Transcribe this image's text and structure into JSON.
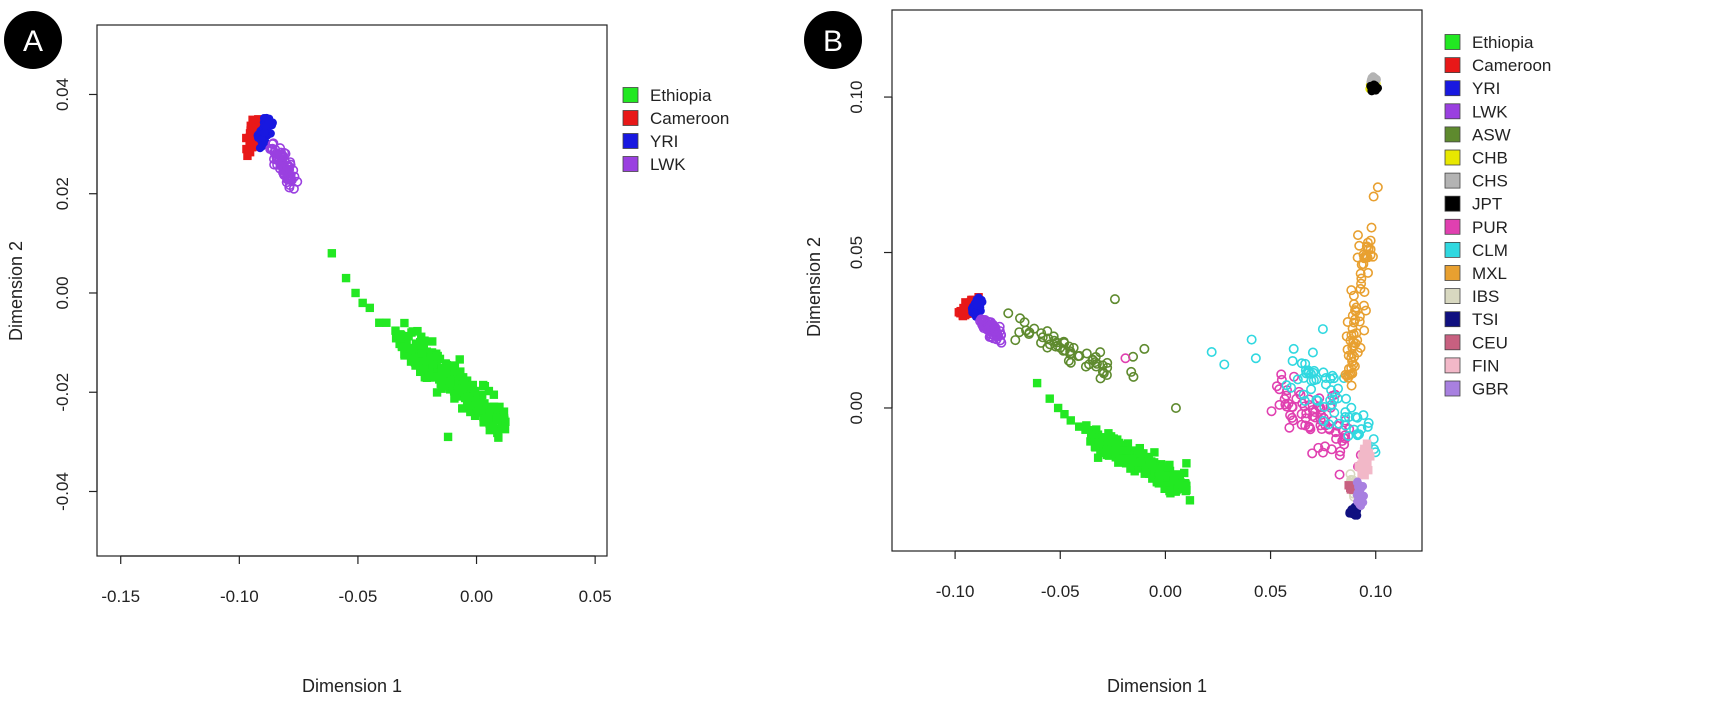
{
  "chart_data": [
    {
      "type": "scatter",
      "panel_label": "A",
      "xlabel": "Dimension 1",
      "ylabel": "Dimension 2",
      "xlim": [
        -0.16,
        0.055
      ],
      "ylim": [
        -0.053,
        0.054
      ],
      "xticks": [
        {
          "value": -0.15,
          "label": "-0.15"
        },
        {
          "value": -0.1,
          "label": "-0.10"
        },
        {
          "value": -0.05,
          "label": "-0.05"
        },
        {
          "value": 0.0,
          "label": "0.00"
        },
        {
          "value": 0.05,
          "label": "0.05"
        }
      ],
      "yticks": [
        {
          "value": -0.04,
          "label": "-0.04"
        },
        {
          "value": -0.02,
          "label": "-0.02"
        },
        {
          "value": 0.0,
          "label": "0.00"
        },
        {
          "value": 0.02,
          "label": "0.02"
        },
        {
          "value": 0.04,
          "label": "0.04"
        }
      ],
      "grid": false,
      "legend_position": "right-outside-top",
      "series": [
        {
          "name": "Ethiopia",
          "color": "#22e822",
          "marker": "filled-square",
          "cluster": {
            "from": [
              -0.035,
              -0.008
            ],
            "to": [
              0.011,
              -0.026
            ],
            "spread": 0.0018,
            "n": 260
          },
          "points": [
            [
              -0.061,
              0.008
            ],
            [
              -0.055,
              0.003
            ],
            [
              -0.051,
              0.0
            ],
            [
              -0.048,
              -0.002
            ],
            [
              -0.045,
              -0.003
            ],
            [
              -0.041,
              -0.006
            ],
            [
              -0.038,
              -0.006
            ],
            [
              -0.012,
              -0.029
            ],
            [
              0.009,
              -0.028
            ]
          ]
        },
        {
          "name": "Cameroon",
          "color": "#e81818",
          "marker": "filled-square",
          "cluster": {
            "from": [
              -0.096,
              0.03
            ],
            "to": [
              -0.09,
              0.034
            ],
            "spread": 0.0012,
            "n": 45
          },
          "points": [
            [
              -0.097,
              0.029
            ],
            [
              -0.092,
              0.035
            ]
          ]
        },
        {
          "name": "YRI",
          "color": "#1818e0",
          "marker": "filled-circle",
          "cluster": {
            "from": [
              -0.091,
              0.031
            ],
            "to": [
              -0.088,
              0.034
            ],
            "spread": 0.0009,
            "n": 70
          },
          "points": []
        },
        {
          "name": "LWK",
          "color": "#9a40e0",
          "marker": "open-circle",
          "cluster": {
            "from": [
              -0.086,
              0.029
            ],
            "to": [
              -0.078,
              0.023
            ],
            "spread": 0.0011,
            "n": 70
          },
          "points": [
            [
              -0.077,
              0.021
            ],
            [
              -0.086,
              0.03
            ]
          ]
        }
      ]
    },
    {
      "type": "scatter",
      "panel_label": "B",
      "xlabel": "Dimension 1",
      "ylabel": "Dimension 2",
      "xlim": [
        -0.13,
        0.122
      ],
      "ylim": [
        -0.046,
        0.128
      ],
      "xticks": [
        {
          "value": -0.1,
          "label": "-0.10"
        },
        {
          "value": -0.05,
          "label": "-0.05"
        },
        {
          "value": 0.0,
          "label": "0.00"
        },
        {
          "value": 0.05,
          "label": "0.05"
        },
        {
          "value": 0.1,
          "label": "0.10"
        }
      ],
      "yticks": [
        {
          "value": 0.0,
          "label": "0.00"
        },
        {
          "value": 0.05,
          "label": "0.05"
        },
        {
          "value": 0.1,
          "label": "0.10"
        }
      ],
      "grid": false,
      "legend_position": "right-outside-top",
      "series": [
        {
          "name": "Ethiopia",
          "color": "#22e822",
          "marker": "filled-square",
          "cluster": {
            "from": [
              -0.035,
              -0.009
            ],
            "to": [
              0.01,
              -0.026
            ],
            "spread": 0.0018,
            "n": 260
          },
          "points": [
            [
              -0.061,
              0.008
            ],
            [
              -0.055,
              0.003
            ],
            [
              -0.051,
              0.0
            ],
            [
              -0.048,
              -0.002
            ],
            [
              -0.045,
              -0.004
            ],
            [
              -0.041,
              -0.006
            ],
            [
              -0.038,
              -0.007
            ]
          ]
        },
        {
          "name": "Cameroon",
          "color": "#e81818",
          "marker": "filled-square",
          "cluster": {
            "from": [
              -0.097,
              0.03
            ],
            "to": [
              -0.091,
              0.034
            ],
            "spread": 0.0012,
            "n": 45
          },
          "points": []
        },
        {
          "name": "YRI",
          "color": "#1818e0",
          "marker": "filled-circle",
          "cluster": {
            "from": [
              -0.091,
              0.031
            ],
            "to": [
              -0.088,
              0.034
            ],
            "spread": 0.0009,
            "n": 70
          },
          "points": []
        },
        {
          "name": "LWK",
          "color": "#9a40e0",
          "marker": "open-circle",
          "cluster": {
            "from": [
              -0.087,
              0.028
            ],
            "to": [
              -0.079,
              0.023
            ],
            "spread": 0.0011,
            "n": 70
          },
          "points": [
            [
              -0.078,
              0.021
            ]
          ]
        },
        {
          "name": "ASW",
          "color": "#5e8a2e",
          "marker": "open-circle",
          "cluster": {
            "from": [
              -0.075,
              0.027
            ],
            "to": [
              -0.018,
              0.011
            ],
            "spread": 0.0022,
            "n": 55
          },
          "points": [
            [
              -0.024,
              0.035
            ],
            [
              -0.01,
              0.019
            ],
            [
              0.005,
              0.0
            ]
          ]
        },
        {
          "name": "CHB",
          "color": "#e8e800",
          "marker": "filled-circle",
          "cluster": {
            "from": [
              0.098,
              0.102
            ],
            "to": [
              0.099,
              0.104
            ],
            "spread": 0.0006,
            "n": 25
          },
          "points": []
        },
        {
          "name": "CHS",
          "color": "#b3b3b3",
          "marker": "filled-circle",
          "cluster": {
            "from": [
              0.099,
              0.105
            ],
            "to": [
              0.099,
              0.106
            ],
            "spread": 0.0007,
            "n": 40
          },
          "points": []
        },
        {
          "name": "JPT",
          "color": "#000000",
          "marker": "filled-circle",
          "cluster": {
            "from": [
              0.098,
              0.103
            ],
            "to": [
              0.1,
              0.103
            ],
            "spread": 0.0005,
            "n": 25
          },
          "points": []
        },
        {
          "name": "PUR",
          "color": "#e040b0",
          "marker": "open-circle",
          "cluster": {
            "from": [
              0.055,
              0.003
            ],
            "to": [
              0.088,
              -0.014
            ],
            "spread": 0.0045,
            "n": 75
          },
          "points": [
            [
              -0.019,
              0.016
            ],
            [
              0.053,
              0.007
            ]
          ]
        },
        {
          "name": "CLM",
          "color": "#30d8e0",
          "marker": "open-circle",
          "cluster": {
            "from": [
              0.064,
              0.012
            ],
            "to": [
              0.092,
              -0.008
            ],
            "spread": 0.005,
            "n": 65
          },
          "points": [
            [
              0.022,
              0.018
            ],
            [
              0.028,
              0.014
            ],
            [
              0.041,
              0.022
            ],
            [
              0.043,
              0.016
            ],
            [
              0.061,
              0.019
            ]
          ]
        },
        {
          "name": "MXL",
          "color": "#e8a030",
          "marker": "open-circle",
          "cluster": {
            "from": [
              0.088,
              0.01
            ],
            "to": [
              0.096,
              0.055
            ],
            "spread": 0.0022,
            "n": 70
          },
          "points": [
            [
              0.099,
              0.068
            ],
            [
              0.101,
              0.071
            ],
            [
              0.098,
              0.058
            ]
          ]
        },
        {
          "name": "IBS",
          "color": "#d8d8c0",
          "marker": "open-circle",
          "cluster": {
            "from": [
              0.088,
              -0.022
            ],
            "to": [
              0.091,
              -0.03
            ],
            "spread": 0.001,
            "n": 12
          },
          "points": []
        },
        {
          "name": "TSI",
          "color": "#101080",
          "marker": "filled-circle",
          "cluster": {
            "from": [
              0.088,
              -0.033
            ],
            "to": [
              0.091,
              -0.034
            ],
            "spread": 0.0007,
            "n": 20
          },
          "points": []
        },
        {
          "name": "CEU",
          "color": "#c86080",
          "marker": "filled-square",
          "cluster": {
            "from": [
              0.087,
              -0.024
            ],
            "to": [
              0.089,
              -0.027
            ],
            "spread": 0.0008,
            "n": 10
          },
          "points": []
        },
        {
          "name": "FIN",
          "color": "#f2b8c8",
          "marker": "filled-square",
          "cluster": {
            "from": [
              0.096,
              -0.012
            ],
            "to": [
              0.094,
              -0.021
            ],
            "spread": 0.0011,
            "n": 40
          },
          "points": []
        },
        {
          "name": "GBR",
          "color": "#a880e0",
          "marker": "filled-circle",
          "cluster": {
            "from": [
              0.092,
              -0.024
            ],
            "to": [
              0.093,
              -0.031
            ],
            "spread": 0.0009,
            "n": 35
          },
          "points": []
        }
      ]
    }
  ]
}
